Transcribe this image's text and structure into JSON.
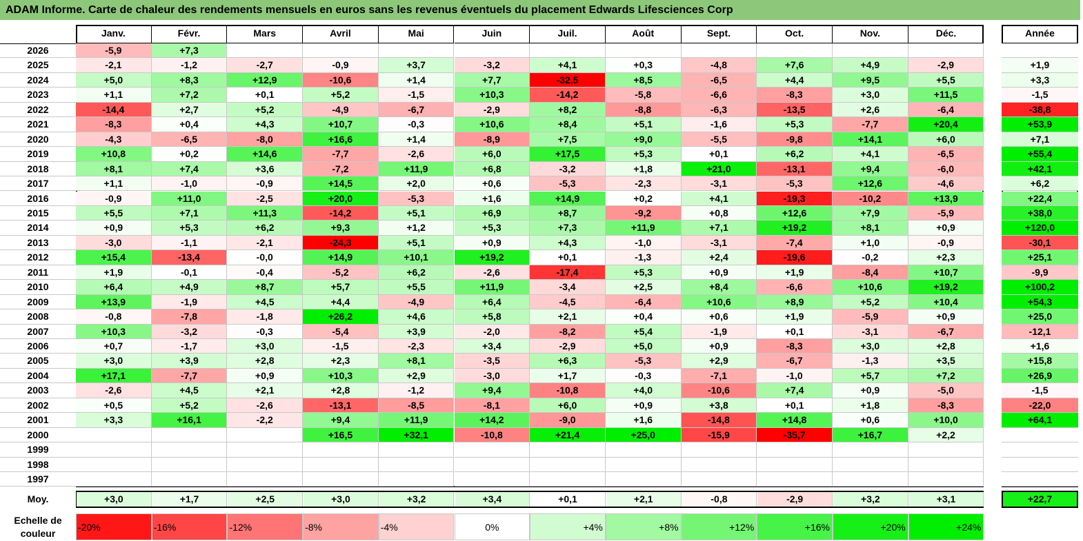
{
  "title": "ADAM Informe. Carte de chaleur des rendements mensuels en euros sans les revenus éventuels du placement Edwards Lifesciences Corp",
  "chart_data": {
    "type": "heatmap",
    "title": "ADAM Informe. Carte de chaleur des rendements mensuels en euros sans les revenus éventuels du placement Edwards Lifesciences Corp",
    "columns": [
      "Janv.",
      "Févr.",
      "Mars",
      "Avril",
      "Mai",
      "Juin",
      "Juil.",
      "Août",
      "Sept.",
      "Oct.",
      "Nov.",
      "Déc."
    ],
    "annual_header": "Année",
    "rows": [
      {
        "year": "2026",
        "values": [
          "-5,9",
          "+7,3",
          "",
          "",
          "",
          "",
          "",
          "",
          "",
          "",
          "",
          ""
        ],
        "annual": ""
      },
      {
        "year": "2025",
        "values": [
          "-2,1",
          "-1,2",
          "-2,7",
          "-0,9",
          "+3,7",
          "-3,2",
          "+4,1",
          "+0,3",
          "-4,8",
          "+7,6",
          "+4,9",
          "-2,9"
        ],
        "annual": "+1,9"
      },
      {
        "year": "2024",
        "values": [
          "+5,0",
          "+8,3",
          "+12,9",
          "-10,6",
          "+1,4",
          "+7,7",
          "-32,5",
          "+8,5",
          "-6,5",
          "+4,4",
          "+9,5",
          "+5,5"
        ],
        "annual": "+3,3"
      },
      {
        "year": "2023",
        "values": [
          "+1,1",
          "+7,2",
          "+0,1",
          "+5,2",
          "-1,5",
          "+10,3",
          "-14,2",
          "-5,8",
          "-6,6",
          "-8,3",
          "+3,0",
          "+11,5"
        ],
        "annual": "-1,5"
      },
      {
        "year": "2022",
        "values": [
          "-14,4",
          "+2,7",
          "+5,2",
          "-4,9",
          "-6,7",
          "-2,9",
          "+8,2",
          "-8,8",
          "-6,3",
          "-13,5",
          "+2,6",
          "-6,4"
        ],
        "annual": "-38,8"
      },
      {
        "year": "2021",
        "values": [
          "-8,3",
          "+0,4",
          "+4,3",
          "+10,7",
          "-0,3",
          "+10,6",
          "+8,4",
          "+5,1",
          "-1,6",
          "+5,3",
          "-7,7",
          "+20,4"
        ],
        "annual": "+53,9"
      },
      {
        "year": "2020",
        "values": [
          "-4,3",
          "-6,5",
          "-8,0",
          "+16,6",
          "+1,4",
          "-8,9",
          "+7,5",
          "+9,0",
          "-5,5",
          "-9,8",
          "+14,1",
          "+6,0"
        ],
        "annual": "+7,1"
      },
      {
        "year": "2019",
        "values": [
          "+10,8",
          "+0,2",
          "+14,6",
          "-7,7",
          "-2,6",
          "+6,0",
          "+17,5",
          "+5,3",
          "+0,1",
          "+6,2",
          "+4,1",
          "-6,5"
        ],
        "annual": "+55,4"
      },
      {
        "year": "2018",
        "values": [
          "+8,1",
          "+7,4",
          "+3,6",
          "-7,2",
          "+11,9",
          "+6,8",
          "-3,2",
          "+1,8",
          "+21,0",
          "-13,1",
          "+9,4",
          "-6,0"
        ],
        "annual": "+42,1"
      },
      {
        "year": "2017",
        "values": [
          "+1,1",
          "-1,0",
          "-0,9",
          "+14,5",
          "+2,0",
          "+0,6",
          "-5,3",
          "-2,3",
          "-3,1",
          "-5,3",
          "+12,6",
          "-4,6"
        ],
        "annual": "+6,2"
      },
      {
        "year": "2016",
        "values": [
          "-0,9",
          "+11,0",
          "-2,5",
          "+20,0",
          "-5,3",
          "+1,6",
          "+14,9",
          "+0,2",
          "+4,1",
          "-19,3",
          "-10,2",
          "+13,9"
        ],
        "annual": "+22,4"
      },
      {
        "year": "2015",
        "values": [
          "+5,5",
          "+7,1",
          "+11,3",
          "-14,2",
          "+5,1",
          "+6,9",
          "+8,7",
          "-9,2",
          "+0,8",
          "+12,6",
          "+7,9",
          "-5,9"
        ],
        "annual": "+38,0"
      },
      {
        "year": "2014",
        "values": [
          "+0,9",
          "+5,3",
          "+6,2",
          "+9,3",
          "+1,2",
          "+5,3",
          "+7,3",
          "+11,9",
          "+7,1",
          "+19,2",
          "+8,1",
          "+0,9"
        ],
        "annual": "+120,0"
      },
      {
        "year": "2013",
        "values": [
          "-3,0",
          "-1,1",
          "-2,1",
          "-24,3",
          "+5,1",
          "+0,9",
          "+4,3",
          "-1,0",
          "-3,1",
          "-7,4",
          "+1,0",
          "-0,9"
        ],
        "annual": "-30,1"
      },
      {
        "year": "2012",
        "values": [
          "+15,4",
          "-13,4",
          "-0,0",
          "+14,9",
          "+10,1",
          "+19,2",
          "+0,1",
          "-1,3",
          "+2,4",
          "-19,6",
          "-0,2",
          "+2,3"
        ],
        "annual": "+25,1"
      },
      {
        "year": "2011",
        "values": [
          "+1,9",
          "-0,1",
          "-0,4",
          "-5,2",
          "+6,2",
          "-2,6",
          "-17,4",
          "+5,3",
          "+0,9",
          "+1,9",
          "-8,4",
          "+10,7"
        ],
        "annual": "-9,9"
      },
      {
        "year": "2010",
        "values": [
          "+6,4",
          "+4,9",
          "+8,7",
          "+5,7",
          "+5,5",
          "+11,9",
          "-3,4",
          "+2,5",
          "+8,4",
          "-6,6",
          "+10,6",
          "+19,2"
        ],
        "annual": "+100,2"
      },
      {
        "year": "2009",
        "values": [
          "+13,9",
          "-1,9",
          "+4,5",
          "+4,4",
          "-4,9",
          "+6,4",
          "-4,5",
          "-6,4",
          "+10,6",
          "+8,9",
          "+5,2",
          "+10,4"
        ],
        "annual": "+54,3"
      },
      {
        "year": "2008",
        "values": [
          "-0,8",
          "-7,8",
          "-1,8",
          "+26,2",
          "+4,6",
          "+5,8",
          "+2,1",
          "+0,4",
          "+0,6",
          "+1,9",
          "-5,9",
          "+0,9"
        ],
        "annual": "+25,0"
      },
      {
        "year": "2007",
        "values": [
          "+10,3",
          "-3,2",
          "-0,3",
          "-5,4",
          "+3,9",
          "-2,0",
          "-8,2",
          "+5,4",
          "-1,9",
          "+0,1",
          "-3,1",
          "-6,7"
        ],
        "annual": "-12,1"
      },
      {
        "year": "2006",
        "values": [
          "+0,7",
          "-1,7",
          "+3,0",
          "-1,5",
          "-2,3",
          "+3,4",
          "-2,9",
          "+5,0",
          "+0,9",
          "-8,3",
          "+3,0",
          "+2,8"
        ],
        "annual": "+1,6"
      },
      {
        "year": "2005",
        "values": [
          "+3,0",
          "+3,9",
          "+2,8",
          "+2,3",
          "+8,1",
          "-3,5",
          "+6,3",
          "-5,3",
          "+2,9",
          "-6,7",
          "-1,3",
          "+3,5"
        ],
        "annual": "+15,8"
      },
      {
        "year": "2004",
        "values": [
          "+17,1",
          "-7,7",
          "+0,9",
          "+10,3",
          "+2,9",
          "-3,0",
          "+1,7",
          "-0,3",
          "-7,1",
          "-1,0",
          "+5,7",
          "+7,2"
        ],
        "annual": "+26,9"
      },
      {
        "year": "2003",
        "values": [
          "-2,6",
          "+4,5",
          "+2,1",
          "+2,8",
          "-1,2",
          "+9,4",
          "-10,8",
          "+4,0",
          "-10,6",
          "+7,4",
          "+0,9",
          "-5,0"
        ],
        "annual": "-1,5"
      },
      {
        "year": "2002",
        "values": [
          "+0,5",
          "+5,2",
          "-2,6",
          "-13,1",
          "-8,5",
          "-8,1",
          "+6,0",
          "+0,9",
          "+3,8",
          "+0,1",
          "+1,8",
          "-8,3"
        ],
        "annual": "-22,0"
      },
      {
        "year": "2001",
        "values": [
          "+3,3",
          "+16,1",
          "-2,2",
          "+9,4",
          "+11,9",
          "+14,2",
          "-9,0",
          "+1,6",
          "-14,8",
          "+14,8",
          "+0,6",
          "+10,0"
        ],
        "annual": "+64,1"
      },
      {
        "year": "2000",
        "values": [
          "",
          "",
          "",
          "+16,5",
          "+32,1",
          "-10,8",
          "+21,4",
          "+25,0",
          "-15,9",
          "-35,7",
          "+16,7",
          "+2,2"
        ],
        "annual": ""
      },
      {
        "year": "1999",
        "values": [
          "",
          "",
          "",
          "",
          "",
          "",
          "",
          "",
          "",
          "",
          "",
          ""
        ],
        "annual": ""
      },
      {
        "year": "1998",
        "values": [
          "",
          "",
          "",
          "",
          "",
          "",
          "",
          "",
          "",
          "",
          "",
          ""
        ],
        "annual": ""
      },
      {
        "year": "1997",
        "values": [
          "",
          "",
          "",
          "",
          "",
          "",
          "",
          "",
          "",
          "",
          "",
          ""
        ],
        "annual": ""
      }
    ],
    "average": {
      "label": "Moy.",
      "values": [
        "+3,0",
        "+1,7",
        "+2,5",
        "+3,0",
        "+3,2",
        "+3,4",
        "+0,1",
        "+2,1",
        "-0,8",
        "-2,9",
        "+3,2",
        "+3,1"
      ],
      "annual": "+22,7"
    },
    "scale": {
      "label_line1": "Echelle de",
      "label_line2": "couleur",
      "items": [
        {
          "label": "-20%",
          "value": -20
        },
        {
          "label": "-16%",
          "value": -16
        },
        {
          "label": "-12%",
          "value": -12
        },
        {
          "label": "-8%",
          "value": -8
        },
        {
          "label": "-4%",
          "value": -4
        },
        {
          "label": "0%",
          "value": 0
        },
        {
          "label": "+4%",
          "value": 4
        },
        {
          "label": "+8%",
          "value": 8
        },
        {
          "label": "+12%",
          "value": 12
        },
        {
          "label": "+16%",
          "value": 16
        },
        {
          "label": "+20%",
          "value": 20
        },
        {
          "label": "+24%",
          "value": 24
        }
      ]
    }
  },
  "colors": {
    "title_bg": "#8dc87a",
    "neg_strong": "#ff0000",
    "pos_strong": "#00ee00",
    "neutral": "#ffffff",
    "grid": "#c8c8c8",
    "border": "#000000"
  }
}
